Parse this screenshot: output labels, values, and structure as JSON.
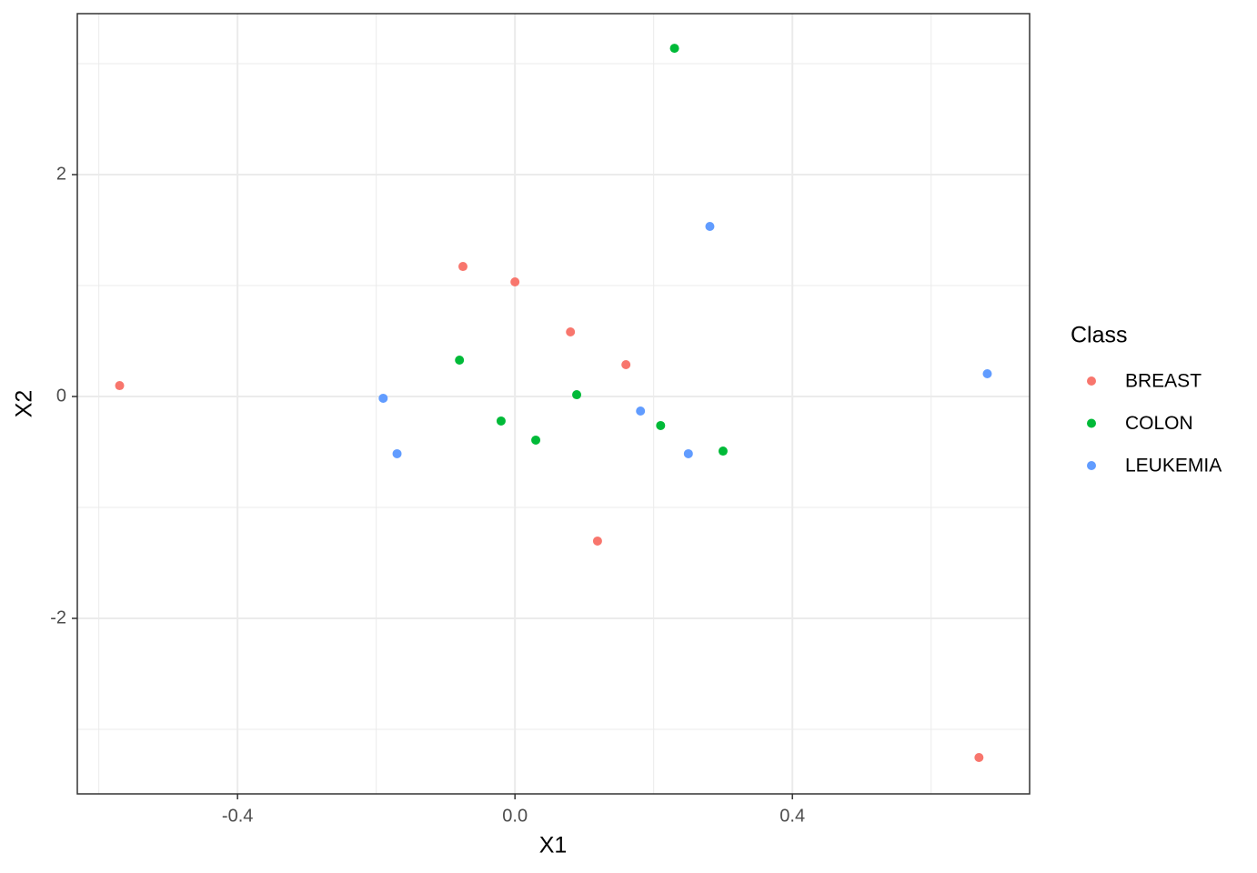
{
  "chart_data": {
    "type": "scatter",
    "x_label": "X1",
    "y_label": "X2",
    "xlim": [
      -0.631,
      0.742
    ],
    "ylim": [
      -3.582,
      3.451
    ],
    "xticks": [
      {
        "value": -0.4,
        "label": "-0.4"
      },
      {
        "value": 0,
        "label": "0.0"
      },
      {
        "value": 0.4,
        "label": "0.4"
      }
    ],
    "yticks": [
      -2,
      0,
      2
    ],
    "grid": true,
    "legend_title": "Class",
    "legend_position": "right",
    "series": [
      {
        "name": "BREAST",
        "color": "#F8766D",
        "x": [
          -0.57,
          -0.075,
          0.0,
          0.08,
          0.16,
          0.119,
          0.669
        ],
        "values": [
          0.098,
          1.172,
          1.033,
          0.582,
          0.287,
          -1.303,
          -3.254
        ]
      },
      {
        "name": "COLON",
        "color": "#00BA38",
        "x": [
          0.23,
          -0.08,
          0.089,
          -0.02,
          0.03,
          0.21,
          0.3
        ],
        "values": [
          3.139,
          0.328,
          0.016,
          -0.221,
          -0.393,
          -0.262,
          -0.492
        ]
      },
      {
        "name": "LEUKEMIA",
        "color": "#619CFF",
        "x": [
          0.281,
          -0.19,
          -0.17,
          0.181,
          0.25,
          0.681
        ],
        "values": [
          1.533,
          -0.016,
          -0.516,
          -0.131,
          -0.516,
          0.205
        ]
      }
    ]
  }
}
